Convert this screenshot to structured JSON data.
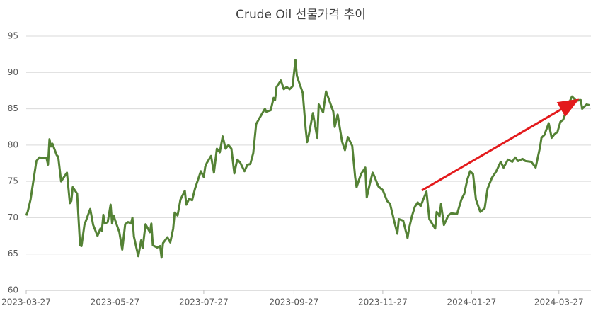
{
  "chart_data": {
    "type": "line",
    "title": "Crude Oil 선물가격 추이",
    "color": "#548235",
    "grid": true,
    "xlim": [
      "2023-03-27",
      "2024-04-18"
    ],
    "xticks": [
      "2023-03-27",
      "2023-05-27",
      "2023-07-27",
      "2023-09-27",
      "2023-11-27",
      "2024-01-27",
      "2024-03-27"
    ],
    "ylim": [
      60,
      95
    ],
    "yticks": [
      60,
      65,
      70,
      75,
      80,
      85,
      90,
      95
    ],
    "x": [
      "2023-03-27",
      "2023-03-28",
      "2023-03-30",
      "2023-04-03",
      "2023-04-05",
      "2023-04-10",
      "2023-04-11",
      "2023-04-12",
      "2023-04-13",
      "2023-04-14",
      "2023-04-17",
      "2023-04-18",
      "2023-04-20",
      "2023-04-24",
      "2023-04-26",
      "2023-04-27",
      "2023-04-28",
      "2023-05-01",
      "2023-05-03",
      "2023-05-04",
      "2023-05-06",
      "2023-05-10",
      "2023-05-12",
      "2023-05-15",
      "2023-05-17",
      "2023-05-18",
      "2023-05-19",
      "2023-05-20",
      "2023-05-22",
      "2023-05-24",
      "2023-05-25",
      "2023-05-26",
      "2023-05-30",
      "2023-06-01",
      "2023-06-03",
      "2023-06-05",
      "2023-06-07",
      "2023-06-08",
      "2023-06-09",
      "2023-06-12",
      "2023-06-14",
      "2023-06-15",
      "2023-06-17",
      "2023-06-20",
      "2023-06-21",
      "2023-06-22",
      "2023-06-25",
      "2023-06-27",
      "2023-06-28",
      "2023-06-29",
      "2023-07-02",
      "2023-07-04",
      "2023-07-06",
      "2023-07-07",
      "2023-07-09",
      "2023-07-11",
      "2023-07-14",
      "2023-07-15",
      "2023-07-17",
      "2023-07-19",
      "2023-07-21",
      "2023-07-24",
      "2023-07-25",
      "2023-07-27",
      "2023-07-28",
      "2023-07-29",
      "2023-08-01",
      "2023-08-03",
      "2023-08-05",
      "2023-08-07",
      "2023-08-09",
      "2023-08-11",
      "2023-08-13",
      "2023-08-15",
      "2023-08-17",
      "2023-08-19",
      "2023-08-21",
      "2023-08-24",
      "2023-08-26",
      "2023-08-28",
      "2023-08-30",
      "2023-09-01",
      "2023-09-05",
      "2023-09-07",
      "2023-09-08",
      "2023-09-11",
      "2023-09-13",
      "2023-09-14",
      "2023-09-15",
      "2023-09-18",
      "2023-09-20",
      "2023-09-22",
      "2023-09-24",
      "2023-09-26",
      "2023-09-28",
      "2023-09-29",
      "2023-10-03",
      "2023-10-05",
      "2023-10-06",
      "2023-10-07",
      "2023-10-10",
      "2023-10-13",
      "2023-10-14",
      "2023-10-17",
      "2023-10-19",
      "2023-10-24",
      "2023-10-25",
      "2023-10-27",
      "2023-10-30",
      "2023-11-01",
      "2023-11-03",
      "2023-11-06",
      "2023-11-08",
      "2023-11-09",
      "2023-11-12",
      "2023-11-15",
      "2023-11-16",
      "2023-11-18",
      "2023-11-20",
      "2023-11-21",
      "2023-11-24",
      "2023-11-27",
      "2023-11-30",
      "2023-12-02",
      "2023-12-05",
      "2023-12-07",
      "2023-12-08",
      "2023-12-11",
      "2023-12-14",
      "2023-12-15",
      "2023-12-17",
      "2023-12-19",
      "2023-12-21",
      "2023-12-23",
      "2023-12-27",
      "2023-12-29",
      "2024-01-02",
      "2024-01-03",
      "2024-01-05",
      "2024-01-06",
      "2024-01-08",
      "2024-01-11",
      "2024-01-13",
      "2024-01-17",
      "2024-01-20",
      "2024-01-22",
      "2024-01-24",
      "2024-01-26",
      "2024-01-28",
      "2024-01-30",
      "2024-02-02",
      "2024-02-05",
      "2024-02-07",
      "2024-02-10",
      "2024-02-13",
      "2024-02-16",
      "2024-02-18",
      "2024-02-21",
      "2024-02-24",
      "2024-02-26",
      "2024-02-28",
      "2024-03-02",
      "2024-03-04",
      "2024-03-08",
      "2024-03-11",
      "2024-03-14",
      "2024-03-15",
      "2024-03-17",
      "2024-03-20",
      "2024-03-22",
      "2024-03-24",
      "2024-03-26",
      "2024-03-28",
      "2024-03-30",
      "2024-04-02",
      "2024-04-05",
      "2024-04-08",
      "2024-04-11",
      "2024-04-12",
      "2024-04-15",
      "2024-04-17"
    ],
    "values": [
      70.3,
      70.8,
      72.5,
      77.8,
      78.3,
      78.2,
      77.3,
      80.8,
      79.8,
      80.2,
      78.6,
      78.4,
      75.0,
      76.2,
      72.0,
      72.3,
      74.2,
      73.3,
      66.2,
      66.1,
      69.0,
      71.2,
      69.0,
      67.5,
      68.5,
      68.2,
      70.4,
      69.2,
      69.4,
      71.8,
      69.2,
      70.3,
      68.0,
      65.6,
      69.1,
      69.4,
      69.2,
      70.0,
      67.4,
      64.7,
      66.9,
      65.8,
      69.1,
      68.0,
      69.2,
      66.2,
      65.9,
      66.1,
      64.5,
      66.5,
      67.3,
      66.6,
      68.5,
      70.7,
      70.3,
      72.5,
      73.7,
      71.8,
      72.6,
      72.4,
      74.0,
      75.8,
      76.4,
      75.6,
      77.0,
      77.5,
      78.5,
      76.2,
      79.5,
      79.0,
      81.2,
      79.5,
      80.0,
      79.5,
      76.1,
      78.0,
      77.6,
      76.4,
      77.3,
      77.4,
      78.9,
      82.9,
      84.3,
      85.0,
      84.6,
      84.8,
      86.5,
      86.2,
      88.0,
      88.9,
      87.7,
      88.0,
      87.7,
      88.1,
      91.7,
      89.5,
      87.2,
      82.3,
      80.4,
      81.2,
      84.4,
      81.0,
      85.6,
      84.5,
      87.4,
      84.6,
      82.5,
      84.2,
      80.5,
      79.3,
      81.1,
      79.9,
      75.6,
      74.2,
      76.0,
      76.9,
      72.8,
      74.6,
      76.2,
      75.8,
      74.3,
      73.8,
      72.3,
      71.9,
      69.4,
      67.8,
      69.8,
      69.6,
      67.2,
      68.5,
      70.2,
      71.5,
      72.1,
      71.6,
      73.6,
      69.8,
      68.5,
      70.8,
      70.2,
      71.9,
      69.0,
      70.3,
      70.6,
      70.5,
      72.5,
      73.3,
      75.2,
      76.4,
      76.0,
      72.5,
      70.8,
      71.3,
      74.0,
      75.5,
      76.4,
      77.7,
      76.9,
      78.0,
      77.7,
      78.3,
      77.8,
      78.1,
      77.8,
      77.7,
      76.9,
      79.7,
      81.0,
      81.4,
      83.0,
      81.0,
      81.5,
      81.8,
      83.2,
      83.5,
      85.4,
      86.7,
      86.1,
      86.2,
      85.0,
      85.6,
      85.5
    ]
  }
}
